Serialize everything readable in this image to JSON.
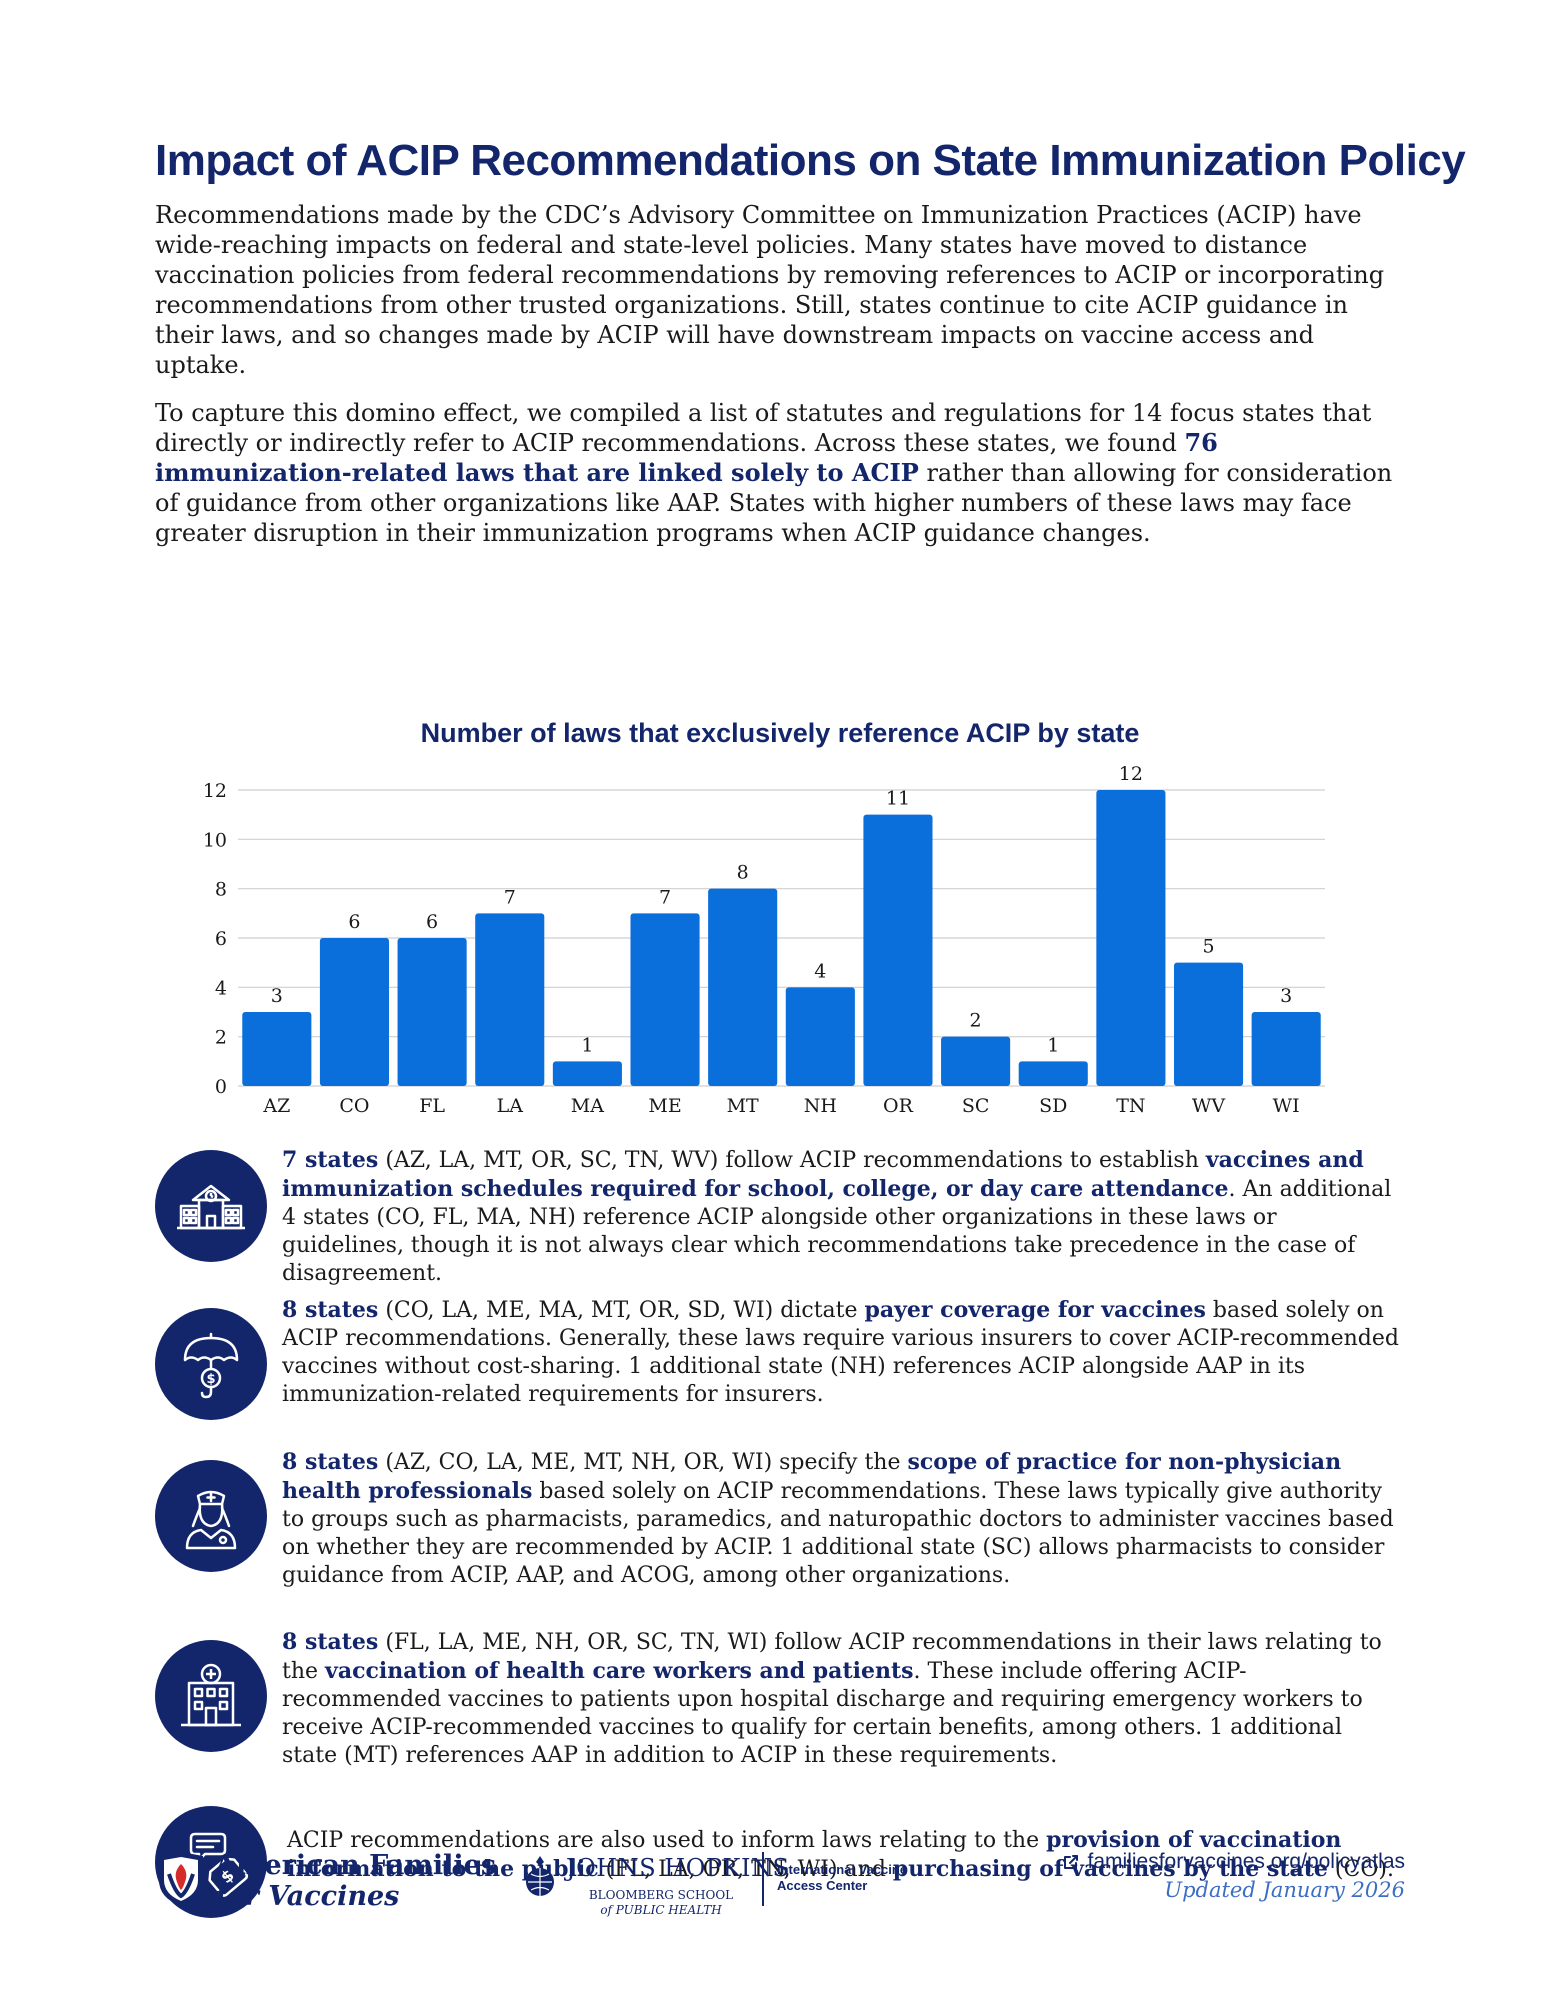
{
  "title": "Impact of ACIP Recommendations on State Immunization Policy",
  "intro": {
    "p1": "Recommendations made by the CDC’s Advisory Committee on Immunization Practices (ACIP) have wide-reaching impacts on federal and state-level policies. Many states have moved to distance vaccination policies from federal recommendations by removing references to ACIP or incorporating recommendations from other trusted organizations. Still, states continue to cite ACIP guidance in their laws, and so changes made by ACIP will have downstream impacts on vaccine access and uptake.",
    "p2_a": "To capture this domino effect, we compiled a list of statutes and regulations for 14 focus states that directly or indirectly refer to ACIP recommendations. Across these states, we found ",
    "p2_hl": "76 immunization-related laws that are linked solely to ACIP",
    "p2_b": " rather than allowing for consideration of guidance from other organizations like AAP. States with higher numbers of these laws may face greater disruption in their immunization programs when ACIP guidance changes."
  },
  "chart_data": {
    "type": "bar",
    "title": "Number of laws that exclusively reference ACIP by state",
    "categories": [
      "AZ",
      "CO",
      "FL",
      "LA",
      "MA",
      "ME",
      "MT",
      "NH",
      "OR",
      "SC",
      "SD",
      "TN",
      "WV",
      "WI"
    ],
    "values": [
      3,
      6,
      6,
      7,
      1,
      7,
      8,
      4,
      11,
      2,
      1,
      12,
      5,
      3
    ],
    "yticks": [
      "0",
      "2",
      "4",
      "6",
      "8",
      "10",
      "12"
    ],
    "ylim": [
      0,
      12
    ],
    "grid": true,
    "bar_color": "#0b6fdb"
  },
  "sections": [
    {
      "icon": "school-building-icon",
      "a": "7 states",
      "b": " (AZ, LA, MT, OR, SC, TN, WV) follow ACIP recommendations to establish ",
      "c": "vaccines and immunization schedules required for school, college, or day care attendance",
      "d": ". An additional 4 states (CO, FL, MA, NH) reference ACIP alongside other organizations in these laws or guidelines, though it is not always clear which recommendations take precedence in the case of disagreement."
    },
    {
      "icon": "umbrella-dollar-icon",
      "a": "8 states",
      "b": " (CO, LA, ME, MA, MT, OR, SD, WI) dictate ",
      "c": "payer coverage for vaccines",
      "d": " based solely on ACIP recommendations. Generally, these laws require various insurers to cover ACIP-recommended vaccines without cost-sharing. 1 additional state (NH) references ACIP alongside AAP in its immunization-related requirements for insurers."
    },
    {
      "icon": "nurse-icon",
      "a": "8 states",
      "b": " (AZ, CO, LA, ME, MT, NH, OR, WI) specify the ",
      "c": "scope of practice for non-physician health professionals",
      "d": " based solely on ACIP recommendations. These laws typically give authority to groups such as pharmacists, paramedics, and naturopathic doctors to administer vaccines based on whether they are recommended by ACIP. 1 additional state (SC) allows pharmacists to consider guidance from ACIP, AAP, and ACOG, among other organizations."
    },
    {
      "icon": "hospital-icon",
      "a": "8 states",
      "b": " (FL, LA, ME, NH, OR, SC, TN, WI) follow ACIP recommendations in their laws relating to the ",
      "c": "vaccination of health care workers and patients",
      "d": ". These include offering ACIP-recommended vaccines to patients upon hospital discharge and requiring emergency workers to receive ACIP-recommended vaccines to qualify for certain benefits, among others. 1 additional state (MT) references AAP in addition to ACIP in these requirements."
    },
    {
      "icon": "chat-price-tag-icon",
      "a": "ACIP recommendations are also used to inform laws relating to the ",
      "b": "provision of vaccination information to the public",
      "c": " (FL, LA, OR, TN, WI) and ",
      "d": "purchasing of vaccines by the state",
      "e": " (CO)."
    }
  ],
  "footer": {
    "afv_line1": "American Families",
    "afv_line2": "for Vaccines",
    "jh_name": "JOHNS HOPKINS",
    "jh_sub1": "BLOOMBERG SCHOOL",
    "jh_sub2": "of PUBLIC HEALTH",
    "ivac_line1": "International Vaccine",
    "ivac_line2": "Access Center",
    "url": "familiesforvaccines.org/policyatlas",
    "updated": "Updated January 2026"
  }
}
